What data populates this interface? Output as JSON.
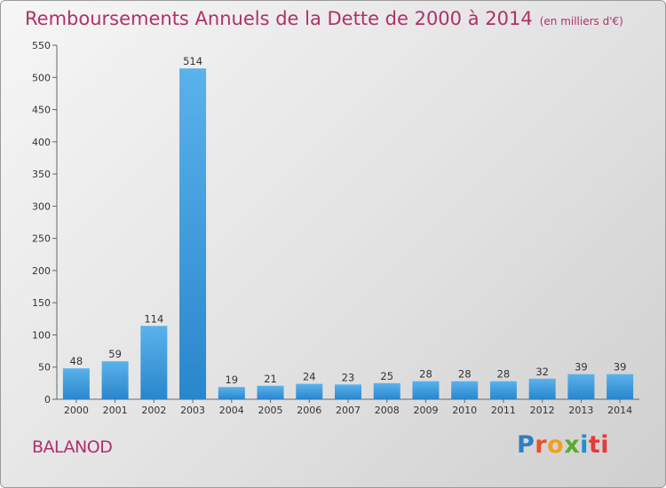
{
  "title": "Remboursements Annuels de la Dette de 2000 à 2014",
  "subtitle": "(en milliers d'€)",
  "place": "BALANOD",
  "logo": {
    "letters": [
      "P",
      "r",
      "o",
      "x",
      "i",
      "ti"
    ]
  },
  "colors": {
    "accent": "#b0306a",
    "bar_light": "#5ab2ec",
    "bar_dark": "#2a86cc"
  },
  "chart_data": {
    "type": "bar",
    "title": "Remboursements Annuels de la Dette de 2000 à 2014",
    "subtitle": "(en milliers d'€)",
    "xlabel": "",
    "ylabel": "",
    "categories": [
      "2000",
      "2001",
      "2002",
      "2003",
      "2004",
      "2005",
      "2006",
      "2007",
      "2008",
      "2009",
      "2010",
      "2011",
      "2012",
      "2013",
      "2014"
    ],
    "values": [
      48,
      59,
      114,
      514,
      19,
      21,
      24,
      23,
      25,
      28,
      28,
      28,
      32,
      39,
      39
    ],
    "data_labels": [
      "48",
      "59",
      "114",
      "514",
      "19",
      "21",
      "24",
      "23",
      "25",
      "28",
      "28",
      "28",
      "32",
      "39",
      "39"
    ],
    "ylim": [
      0,
      550
    ],
    "yticks": [
      0,
      50,
      100,
      150,
      200,
      250,
      300,
      350,
      400,
      450,
      500,
      550
    ],
    "ytick_labels": [
      "0",
      "50",
      "100",
      "150",
      "200",
      "250",
      "300",
      "350",
      "400",
      "450",
      "500",
      "550"
    ],
    "grid": false,
    "legend": "none"
  }
}
